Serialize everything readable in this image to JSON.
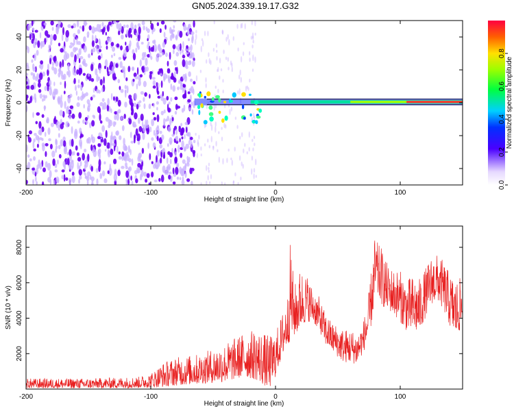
{
  "title": "GN05.2024.339.19.17.G32",
  "colors": {
    "spec_light": "#c9b1ff",
    "spec_dark": "#6a00f0",
    "snr_line": "#e82020"
  },
  "chart_data": [
    {
      "type": "heatmap",
      "title": "GN05.2024.339.19.17.G32",
      "xlabel": "Height of straight line (km)",
      "ylabel": "Frequency (Hz)",
      "xlim": [
        -200,
        150
      ],
      "ylim": [
        -50,
        50
      ],
      "xticks": [
        -200,
        -100,
        0,
        100
      ],
      "yticks": [
        -40,
        -20,
        0,
        20,
        40
      ],
      "xtick_labels": [
        "-200",
        "-100",
        "0",
        "100"
      ],
      "ytick_labels": [
        "-40",
        "-20",
        "0",
        "20",
        "40"
      ],
      "noise_region_x": [
        -200,
        -65
      ],
      "faint_region_x": [
        -65,
        -15
      ],
      "signal_band": {
        "x_start": -65,
        "x_end": 150,
        "freq": 0.5
      },
      "colorbar": {
        "label": "Normalized spectral amplitude",
        "range": [
          0,
          1
        ],
        "ticks": [
          0.0,
          0.2,
          0.4,
          0.6,
          0.8
        ],
        "tick_labels": [
          "0.0",
          "0.2",
          "0.4",
          "0.6",
          "0.8"
        ],
        "colormap": "rainbow"
      }
    },
    {
      "type": "line",
      "xlabel": "Height of straight line (km)",
      "ylabel": "SNR (10 * v/v)",
      "xlim": [
        -200,
        150
      ],
      "ylim": [
        0,
        9200
      ],
      "xticks": [
        -200,
        -100,
        0,
        100
      ],
      "yticks": [
        2000,
        4000,
        6000,
        8000
      ],
      "xtick_labels": [
        "-200",
        "-100",
        "0",
        "100"
      ],
      "ytick_labels": [
        "2000",
        "4000",
        "6000",
        "8000"
      ],
      "envelope": {
        "x": [
          -200,
          -150,
          -110,
          -100,
          -90,
          -80,
          -60,
          -40,
          -25,
          -15,
          -5,
          0,
          5,
          10,
          12,
          15,
          18,
          20,
          25,
          30,
          35,
          40,
          45,
          50,
          55,
          60,
          65,
          70,
          75,
          78,
          80,
          82,
          85,
          88,
          90,
          95,
          100,
          105,
          110,
          115,
          120,
          125,
          130,
          135,
          140,
          145,
          150
        ],
        "low": [
          50,
          50,
          60,
          80,
          120,
          200,
          300,
          400,
          700,
          500,
          0,
          700,
          1800,
          2500,
          2800,
          3000,
          3200,
          3500,
          3800,
          3800,
          3300,
          2500,
          2200,
          1800,
          1500,
          1500,
          1400,
          2000,
          2800,
          4200,
          5000,
          5200,
          4800,
          4500,
          4500,
          4200,
          3800,
          3300,
          3200,
          3200,
          4000,
          4800,
          5000,
          4400,
          3500,
          3000,
          3500
        ],
        "high": [
          600,
          600,
          700,
          900,
          1500,
          1800,
          2000,
          2600,
          3200,
          3400,
          3000,
          3200,
          4200,
          5500,
          8600,
          5800,
          6500,
          6800,
          6500,
          5700,
          5200,
          4300,
          3800,
          3600,
          3400,
          3400,
          3200,
          3700,
          5500,
          7500,
          8900,
          8200,
          8000,
          7400,
          7000,
          6800,
          6700,
          6200,
          6400,
          6200,
          6800,
          7500,
          7600,
          7200,
          6500,
          6200,
          6300
        ]
      }
    }
  ]
}
